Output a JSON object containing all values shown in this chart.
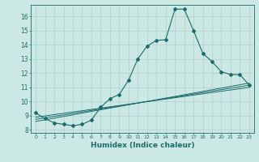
{
  "xlabel": "Humidex (Indice chaleur)",
  "bg_color": "#cce8e4",
  "grid_color": "#b0d0cc",
  "line_color": "#1a6b6b",
  "xlim": [
    -0.5,
    23.5
  ],
  "ylim": [
    7.8,
    16.8
  ],
  "yticks": [
    8,
    9,
    10,
    11,
    12,
    13,
    14,
    15,
    16
  ],
  "xticks": [
    0,
    1,
    2,
    3,
    4,
    5,
    6,
    7,
    8,
    9,
    10,
    11,
    12,
    13,
    14,
    15,
    16,
    17,
    18,
    19,
    20,
    21,
    22,
    23
  ],
  "curve1_x": [
    0,
    1,
    2,
    3,
    4,
    5,
    6,
    7,
    8,
    9,
    10,
    11,
    12,
    13,
    14,
    15,
    16,
    17,
    18,
    19,
    20,
    21,
    22,
    23
  ],
  "curve1_y": [
    9.2,
    8.8,
    8.5,
    8.4,
    8.3,
    8.4,
    8.7,
    9.6,
    10.2,
    10.5,
    11.5,
    13.0,
    13.9,
    14.3,
    14.35,
    16.5,
    16.5,
    15.0,
    13.4,
    12.8,
    12.1,
    11.9,
    11.9,
    11.15
  ],
  "line1_x": [
    0,
    23
  ],
  "line1_y": [
    8.9,
    11.0
  ],
  "line2_x": [
    0,
    23
  ],
  "line2_y": [
    8.75,
    11.15
  ],
  "line3_x": [
    0,
    23
  ],
  "line3_y": [
    8.6,
    11.3
  ]
}
